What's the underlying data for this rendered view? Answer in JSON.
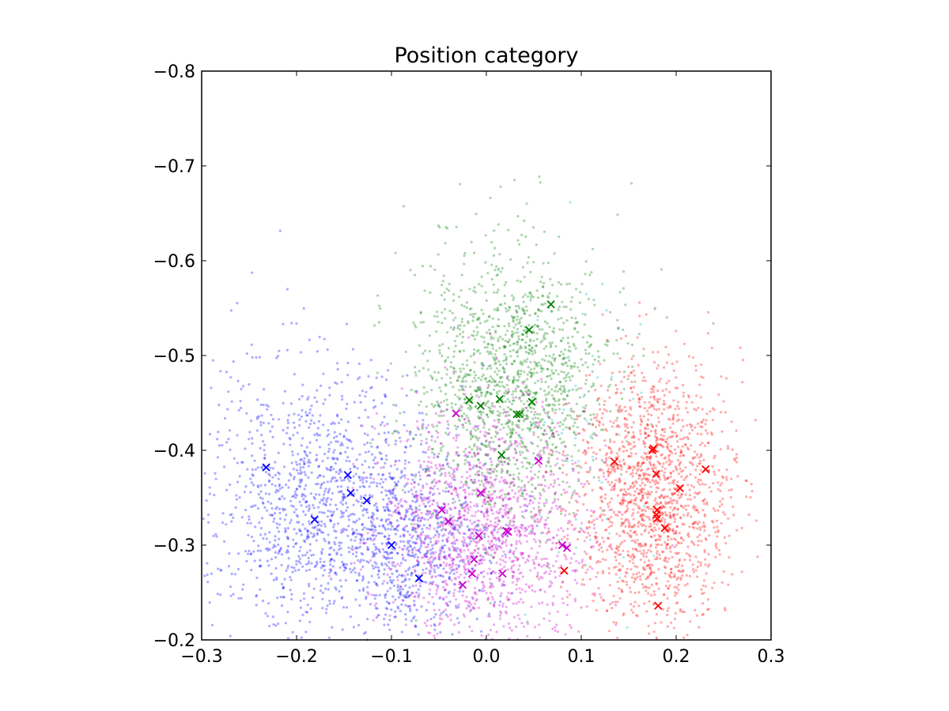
{
  "chart_data": {
    "type": "scatter",
    "title": "Position category",
    "xlabel": "",
    "ylabel": "",
    "xlim": [
      -0.3,
      0.3
    ],
    "ylim": [
      -0.2,
      -0.8
    ],
    "y_inverted": true,
    "grid": false,
    "legend": "none",
    "xticks": [
      -0.3,
      -0.2,
      -0.1,
      0.0,
      0.1,
      0.2,
      0.3
    ],
    "xtick_labels": [
      "−0.3",
      "−0.2",
      "−0.1",
      "0.0",
      "0.1",
      "0.2",
      "0.3"
    ],
    "yticks": [
      -0.8,
      -0.7,
      -0.6,
      -0.5,
      -0.4,
      -0.3,
      -0.2
    ],
    "ytick_labels": [
      "−0.8",
      "−0.7",
      "−0.6",
      "−0.5",
      "−0.4",
      "−0.3",
      "−0.2"
    ],
    "clouds": [
      {
        "color": "#0000ff",
        "center": [
          -0.18,
          -0.35
        ],
        "spread": [
          0.065,
          0.07
        ],
        "count": 1200
      },
      {
        "color": "#0000ff",
        "center": [
          -0.08,
          -0.3
        ],
        "spread": [
          0.045,
          0.05
        ],
        "count": 700
      },
      {
        "color": "#008000",
        "center": [
          0.025,
          -0.47
        ],
        "spread": [
          0.05,
          0.07
        ],
        "count": 1500
      },
      {
        "color": "#cc00cc",
        "center": [
          0.0,
          -0.32
        ],
        "spread": [
          0.055,
          0.06
        ],
        "count": 1500
      },
      {
        "color": "#ff0000",
        "center": [
          0.175,
          -0.35
        ],
        "spread": [
          0.04,
          0.07
        ],
        "count": 1600
      },
      {
        "color": "#00bfbf",
        "center": [
          0.1,
          -0.42
        ],
        "spread": [
          0.04,
          0.1
        ],
        "count": 60
      }
    ],
    "series": [
      {
        "color": "#0000ff",
        "marker": "x",
        "x": [
          -0.232,
          -0.181,
          -0.146,
          -0.143,
          -0.126,
          -0.1,
          -0.071
        ],
        "y": [
          -0.382,
          -0.327,
          -0.374,
          -0.355,
          -0.347,
          -0.3,
          -0.265
        ]
      },
      {
        "color": "#008000",
        "marker": "x",
        "x": [
          0.068,
          0.045,
          -0.018,
          -0.006,
          0.014,
          0.032,
          0.035,
          0.048,
          0.016
        ],
        "y": [
          -0.554,
          -0.527,
          -0.453,
          -0.447,
          -0.454,
          -0.438,
          -0.438,
          -0.451,
          -0.395
        ]
      },
      {
        "color": "#cc00cc",
        "marker": "x",
        "x": [
          -0.032,
          0.055,
          -0.047,
          -0.04,
          -0.006,
          -0.008,
          0.021,
          0.023,
          -0.013,
          -0.015,
          -0.025,
          0.017,
          0.08,
          0.085
        ],
        "y": [
          -0.439,
          -0.389,
          -0.337,
          -0.325,
          -0.355,
          -0.31,
          -0.315,
          -0.314,
          -0.285,
          -0.27,
          -0.258,
          -0.27,
          -0.3,
          -0.297
        ]
      },
      {
        "color": "#ff0000",
        "marker": "x",
        "x": [
          0.135,
          0.175,
          0.176,
          0.179,
          0.231,
          0.204,
          0.18,
          0.179,
          0.18,
          0.188,
          0.082,
          0.181
        ],
        "y": [
          -0.388,
          -0.4,
          -0.402,
          -0.375,
          -0.38,
          -0.36,
          -0.337,
          -0.332,
          -0.328,
          -0.318,
          -0.273,
          -0.236
        ]
      }
    ]
  }
}
